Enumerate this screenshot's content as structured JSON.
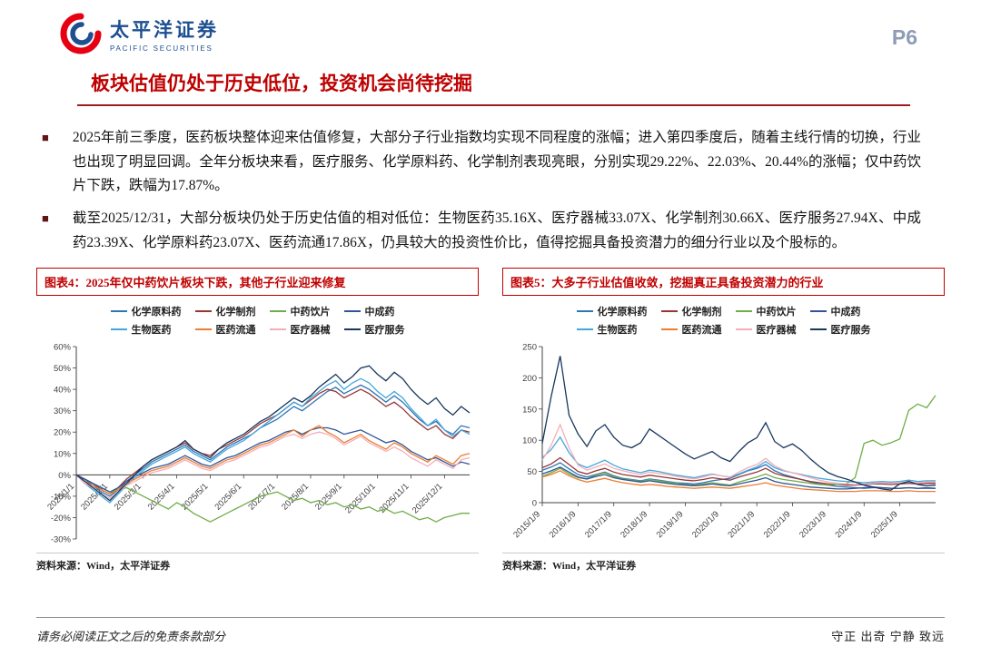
{
  "header": {
    "brand_cn": "太平洋证券",
    "brand_en": "PACIFIC SECURITIES",
    "logo_icon": "pacific-securities-swirl-icon",
    "page_number": "P6"
  },
  "title": "板块估值仍处于历史低位，投资机会尚待挖掘",
  "bullets": [
    "2025年前三季度，医药板块整体迎来估值修复，大部分子行业指数均实现不同程度的涨幅；进入第四季度后，随着主线行情的切换，行业也出现了明显回调。全年分板块来看，医疗服务、化学原料药、化学制剂表现亮眼，分别实现29.22%、22.03%、20.44%的涨幅；仅中药饮片下跌，跌幅为17.87%。",
    "截至2025/12/31，大部分板块仍处于历史估值的相对低位：生物医药35.16X、医疗器械33.07X、化学制剂30.66X、医疗服务27.94X、中成药23.39X、化学原料药23.07X、医药流通17.86X，仍具较大的投资性价比，值得挖掘具备投资潜力的细分行业以及个股标的。"
  ],
  "chart_data": [
    {
      "type": "line",
      "title": "图表4：2025年仅中药饮片板块下跌，其他子行业迎来修复",
      "source": "资料来源：Wind，太平洋证券",
      "ylim": [
        -30,
        60
      ],
      "yticks": [
        60,
        50,
        40,
        30,
        20,
        10,
        0,
        -10,
        -20,
        -30
      ],
      "y_suffix": "%",
      "x_axis_at": 0,
      "x_labels": [
        "2025/1/1",
        "2025/2/1",
        "2025/3/1",
        "2025/4/1",
        "2025/5/1",
        "2025/6/1",
        "2025/7/1",
        "2025/8/1",
        "2025/9/1",
        "2025/10/1",
        "2025/11/1",
        "2025/12/1"
      ],
      "x_label_indices": [
        0,
        4,
        8,
        12,
        16,
        20,
        24,
        28,
        32,
        36,
        40,
        44
      ],
      "series": [
        {
          "name": "化学原料药",
          "color": "#2E75B6",
          "values": [
            0,
            -2,
            -5,
            -8,
            -10,
            -7,
            -3,
            0,
            3,
            6,
            8,
            10,
            12,
            14,
            11,
            9,
            7,
            10,
            13,
            15,
            17,
            19,
            22,
            24,
            26,
            29,
            32,
            30,
            33,
            36,
            39,
            41,
            38,
            40,
            42,
            40,
            37,
            34,
            37,
            34,
            30,
            26,
            23,
            25,
            21,
            19,
            23,
            22
          ]
        },
        {
          "name": "化学制剂",
          "color": "#953735",
          "values": [
            0,
            -2,
            -4,
            -7,
            -9,
            -6,
            -2,
            1,
            4,
            7,
            9,
            11,
            13,
            15,
            12,
            10,
            9,
            12,
            14,
            16,
            18,
            21,
            24,
            26,
            28,
            31,
            34,
            32,
            35,
            38,
            40,
            39,
            36,
            38,
            40,
            38,
            35,
            32,
            34,
            31,
            27,
            24,
            21,
            23,
            19,
            17,
            21,
            20
          ]
        },
        {
          "name": "中药饮片",
          "color": "#70AD47",
          "values": [
            0,
            -2,
            -4,
            -6,
            -8,
            -7,
            -6,
            -8,
            -10,
            -12,
            -14,
            -16,
            -13,
            -15,
            -18,
            -20,
            -22,
            -20,
            -18,
            -16,
            -14,
            -12,
            -10,
            -9,
            -8,
            -10,
            -12,
            -11,
            -13,
            -12,
            -14,
            -13,
            -15,
            -14,
            -16,
            -15,
            -17,
            -16,
            -18,
            -17,
            -19,
            -21,
            -20,
            -22,
            -20,
            -19,
            -18,
            -18
          ]
        },
        {
          "name": "中成药",
          "color": "#2F5597",
          "values": [
            0,
            -2,
            -4,
            -6,
            -8,
            -6,
            -3,
            -1,
            1,
            3,
            4,
            5,
            7,
            9,
            7,
            5,
            4,
            6,
            8,
            9,
            11,
            13,
            15,
            16,
            18,
            20,
            21,
            19,
            21,
            22,
            22,
            21,
            19,
            20,
            21,
            19,
            17,
            15,
            16,
            14,
            11,
            9,
            7,
            8,
            6,
            4,
            6,
            5
          ]
        },
        {
          "name": "生物医药",
          "color": "#45A6DC",
          "values": [
            0,
            -4,
            -7,
            -10,
            -13,
            -9,
            -5,
            -1,
            2,
            5,
            7,
            9,
            11,
            13,
            10,
            8,
            6,
            9,
            12,
            14,
            16,
            19,
            22,
            25,
            28,
            31,
            34,
            32,
            36,
            39,
            42,
            44,
            40,
            43,
            45,
            43,
            39,
            36,
            39,
            36,
            31,
            27,
            23,
            26,
            21,
            18,
            21,
            19
          ]
        },
        {
          "name": "医药流通",
          "color": "#ED7D31",
          "values": [
            0,
            -3,
            -5,
            -7,
            -9,
            -7,
            -4,
            -2,
            0,
            2,
            3,
            4,
            6,
            8,
            6,
            4,
            3,
            5,
            7,
            8,
            10,
            12,
            14,
            15,
            17,
            19,
            21,
            18,
            21,
            23,
            20,
            18,
            15,
            17,
            19,
            16,
            14,
            12,
            15,
            13,
            10,
            8,
            6,
            9,
            7,
            5,
            9,
            10
          ]
        },
        {
          "name": "医疗器械",
          "color": "#F4AEB8",
          "values": [
            0,
            -4,
            -6,
            -9,
            -11,
            -8,
            -5,
            -3,
            -1,
            1,
            2,
            3,
            5,
            7,
            5,
            3,
            2,
            4,
            6,
            7,
            9,
            11,
            13,
            14,
            16,
            18,
            19,
            17,
            19,
            20,
            19,
            17,
            14,
            16,
            18,
            15,
            13,
            11,
            13,
            11,
            8,
            6,
            4,
            7,
            5,
            3,
            7,
            8
          ]
        },
        {
          "name": "医疗服务",
          "color": "#17375E",
          "values": [
            0,
            -3,
            -6,
            -9,
            -12,
            -8,
            -4,
            0,
            4,
            7,
            9,
            11,
            13,
            16,
            12,
            10,
            8,
            12,
            15,
            17,
            19,
            22,
            25,
            27,
            30,
            33,
            36,
            34,
            37,
            41,
            44,
            47,
            43,
            46,
            50,
            51,
            47,
            44,
            48,
            45,
            40,
            36,
            33,
            36,
            31,
            28,
            32,
            29
          ]
        }
      ]
    },
    {
      "type": "line",
      "title": "图表5：大多子行业估值收敛，挖掘真正具备投资潜力的行业",
      "source": "资料来源：Wind，太平洋证券",
      "ylim": [
        0,
        250
      ],
      "yticks": [
        250,
        200,
        150,
        100,
        50,
        0
      ],
      "y_suffix": "",
      "x_axis_at": 0,
      "x_labels": [
        "2015/1/9",
        "2016/1/9",
        "2017/1/9",
        "2018/1/9",
        "2019/1/9",
        "2020/1/9",
        "2021/1/9",
        "2022/1/9",
        "2023/1/9",
        "2024/1/9",
        "2025/1/9"
      ],
      "x_label_indices": [
        0,
        4,
        8,
        12,
        16,
        20,
        24,
        28,
        32,
        36,
        40
      ],
      "series": [
        {
          "name": "化学原料药",
          "color": "#2E75B6",
          "values": [
            52,
            57,
            64,
            54,
            45,
            41,
            45,
            49,
            43,
            39,
            37,
            35,
            38,
            36,
            34,
            32,
            31,
            30,
            32,
            35,
            37,
            39,
            45,
            51,
            55,
            61,
            51,
            45,
            41,
            37,
            33,
            30,
            28,
            26,
            25,
            24,
            23,
            24,
            24,
            23,
            23,
            24,
            23,
            23,
            23
          ]
        },
        {
          "name": "化学制剂",
          "color": "#953735",
          "values": [
            56,
            62,
            72,
            61,
            50,
            46,
            51,
            55,
            49,
            45,
            43,
            41,
            44,
            42,
            40,
            38,
            36,
            35,
            37,
            40,
            38,
            36,
            41,
            45,
            49,
            55,
            47,
            43,
            40,
            37,
            34,
            32,
            30,
            29,
            28,
            28,
            29,
            30,
            30,
            29,
            30,
            31,
            30,
            31,
            31
          ]
        },
        {
          "name": "中药饮片",
          "color": "#70AD47",
          "values": [
            42,
            48,
            55,
            46,
            40,
            38,
            44,
            48,
            42,
            38,
            36,
            34,
            37,
            35,
            33,
            31,
            29,
            28,
            30,
            32,
            30,
            28,
            33,
            37,
            41,
            46,
            40,
            37,
            35,
            33,
            31,
            29,
            28,
            29,
            30,
            40,
            95,
            100,
            92,
            96,
            102,
            148,
            158,
            152,
            172
          ]
        },
        {
          "name": "中成药",
          "color": "#2F5597",
          "values": [
            46,
            51,
            57,
            49,
            41,
            38,
            42,
            45,
            40,
            37,
            35,
            33,
            35,
            33,
            31,
            29,
            28,
            27,
            28,
            30,
            28,
            27,
            30,
            33,
            36,
            40,
            34,
            31,
            29,
            27,
            25,
            24,
            23,
            22,
            22,
            23,
            24,
            25,
            24,
            23,
            23,
            24,
            23,
            24,
            23
          ]
        },
        {
          "name": "生物医药",
          "color": "#45A6DC",
          "values": [
            72,
            85,
            105,
            80,
            62,
            56,
            62,
            68,
            60,
            54,
            51,
            48,
            52,
            50,
            47,
            44,
            42,
            40,
            43,
            46,
            43,
            41,
            46,
            52,
            57,
            66,
            56,
            51,
            48,
            45,
            42,
            39,
            37,
            35,
            34,
            33,
            32,
            33,
            34,
            33,
            34,
            36,
            34,
            35,
            35
          ]
        },
        {
          "name": "医药流通",
          "color": "#ED7D31",
          "values": [
            41,
            45,
            51,
            43,
            37,
            33,
            36,
            39,
            35,
            32,
            30,
            28,
            29,
            28,
            26,
            25,
            24,
            23,
            24,
            25,
            24,
            23,
            25,
            27,
            29,
            32,
            28,
            26,
            24,
            22,
            21,
            20,
            19,
            18,
            18,
            18,
            19,
            19,
            19,
            18,
            18,
            19,
            18,
            18,
            18
          ]
        },
        {
          "name": "医疗器械",
          "color": "#F4AEB8",
          "values": [
            68,
            92,
            125,
            88,
            60,
            52,
            57,
            62,
            55,
            51,
            48,
            45,
            49,
            47,
            45,
            42,
            40,
            38,
            41,
            45,
            43,
            41,
            49,
            56,
            61,
            71,
            59,
            52,
            48,
            44,
            40,
            36,
            33,
            31,
            30,
            29,
            30,
            31,
            32,
            31,
            32,
            33,
            32,
            33,
            33
          ]
        },
        {
          "name": "医疗服务",
          "color": "#17375E",
          "values": [
            95,
            170,
            235,
            140,
            110,
            90,
            115,
            125,
            105,
            92,
            88,
            96,
            118,
            108,
            98,
            88,
            78,
            70,
            76,
            82,
            72,
            66,
            82,
            96,
            104,
            128,
            98,
            88,
            94,
            84,
            70,
            58,
            48,
            42,
            38,
            33,
            28,
            25,
            22,
            20,
            30,
            34,
            29,
            27,
            28
          ]
        }
      ]
    }
  ],
  "footer": {
    "left": "请务必阅读正文之后的免责条款部分",
    "right": "守正 出奇 宁静 致远"
  }
}
